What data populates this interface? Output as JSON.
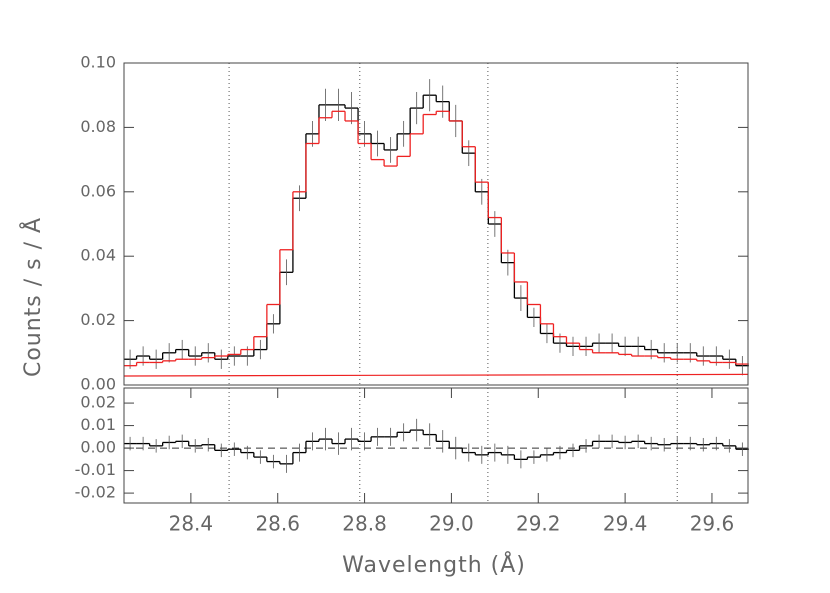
{
  "chart_data": [
    {
      "type": "step",
      "ylabel": "Counts / s / Å",
      "xlim": [
        28.246,
        29.683
      ],
      "ylim": [
        0,
        0.1
      ],
      "yticks": [
        {
          "value": 0,
          "label": "0.00"
        },
        {
          "value": 0.02,
          "label": "0.02"
        },
        {
          "value": 0.04,
          "label": "0.04"
        },
        {
          "value": 0.06,
          "label": "0.06"
        },
        {
          "value": 0.08,
          "label": "0.08"
        },
        {
          "value": 0.1,
          "label": "0.10"
        }
      ],
      "vlines": [
        28.488,
        28.789,
        29.084,
        29.52
      ],
      "series": [
        {
          "color": "#000000",
          "style": "step",
          "x": [
            28.26,
            28.29,
            28.32,
            28.35,
            28.38,
            28.41,
            28.44,
            28.47,
            28.5,
            28.53,
            28.56,
            28.59,
            28.62,
            28.65,
            28.68,
            28.71,
            28.74,
            28.77,
            28.8,
            28.83,
            28.86,
            28.89,
            28.92,
            28.95,
            28.98,
            29.01,
            29.04,
            29.07,
            29.1,
            29.13,
            29.16,
            29.19,
            29.22,
            29.25,
            29.28,
            29.31,
            29.34,
            29.37,
            29.4,
            29.43,
            29.46,
            29.49,
            29.52,
            29.55,
            29.58,
            29.61,
            29.64,
            29.67
          ],
          "values": [
            0.008,
            0.009,
            0.008,
            0.01,
            0.011,
            0.009,
            0.01,
            0.008,
            0.009,
            0.009,
            0.011,
            0.019,
            0.035,
            0.058,
            0.078,
            0.087,
            0.087,
            0.086,
            0.078,
            0.075,
            0.073,
            0.078,
            0.086,
            0.09,
            0.088,
            0.082,
            0.072,
            0.06,
            0.05,
            0.038,
            0.027,
            0.021,
            0.016,
            0.013,
            0.012,
            0.012,
            0.013,
            0.013,
            0.012,
            0.012,
            0.011,
            0.01,
            0.01,
            0.01,
            0.009,
            0.009,
            0.008,
            0.006
          ],
          "errors": [
            0.003,
            0.003,
            0.003,
            0.003,
            0.003,
            0.003,
            0.003,
            0.003,
            0.003,
            0.003,
            0.003,
            0.003,
            0.004,
            0.004,
            0.004,
            0.005,
            0.005,
            0.005,
            0.004,
            0.004,
            0.004,
            0.004,
            0.005,
            0.005,
            0.005,
            0.005,
            0.004,
            0.004,
            0.004,
            0.004,
            0.004,
            0.003,
            0.003,
            0.003,
            0.003,
            0.003,
            0.003,
            0.003,
            0.003,
            0.003,
            0.003,
            0.003,
            0.003,
            0.003,
            0.003,
            0.003,
            0.003,
            0.003
          ]
        },
        {
          "color": "#ee2222",
          "style": "step",
          "x": [
            28.26,
            28.29,
            28.32,
            28.35,
            28.38,
            28.41,
            28.44,
            28.47,
            28.5,
            28.53,
            28.56,
            28.59,
            28.62,
            28.65,
            28.68,
            28.71,
            28.74,
            28.77,
            28.8,
            28.83,
            28.86,
            28.89,
            28.92,
            28.95,
            28.98,
            29.01,
            29.04,
            29.07,
            29.1,
            29.13,
            29.16,
            29.19,
            29.22,
            29.25,
            29.28,
            29.31,
            29.34,
            29.37,
            29.4,
            29.43,
            29.46,
            29.49,
            29.52,
            29.55,
            29.58,
            29.61,
            29.64,
            29.67
          ],
          "values": [
            0.006,
            0.007,
            0.007,
            0.0075,
            0.008,
            0.008,
            0.0085,
            0.009,
            0.0095,
            0.011,
            0.015,
            0.025,
            0.042,
            0.06,
            0.075,
            0.083,
            0.085,
            0.082,
            0.075,
            0.07,
            0.068,
            0.071,
            0.078,
            0.084,
            0.085,
            0.082,
            0.074,
            0.063,
            0.052,
            0.041,
            0.032,
            0.025,
            0.019,
            0.015,
            0.013,
            0.011,
            0.01,
            0.01,
            0.0095,
            0.009,
            0.009,
            0.0085,
            0.008,
            0.008,
            0.0075,
            0.007,
            0.007,
            0.0065
          ]
        },
        {
          "color": "#ee2222",
          "style": "line",
          "x": [
            28.246,
            29.683
          ],
          "values": [
            0.0028,
            0.0033
          ]
        }
      ]
    },
    {
      "type": "step",
      "xlabel": "Wavelength (Å)",
      "xlim": [
        28.246,
        29.683
      ],
      "ylim": [
        -0.0244,
        0.0267
      ],
      "xticks": [
        28.4,
        28.6,
        28.8,
        {
          "value": 29,
          "label": "29.0"
        },
        29.2,
        29.4,
        29.6
      ],
      "yticks": [
        {
          "value": -0.02,
          "label": "-0.02"
        },
        {
          "value": -0.01,
          "label": "-0.01"
        },
        {
          "value": 0,
          "label": "0.00"
        },
        {
          "value": 0.01,
          "label": "0.01"
        },
        {
          "value": 0.02,
          "label": "0.02"
        }
      ],
      "zero_line": 0,
      "vlines": [
        28.488,
        28.789,
        29.084,
        29.52
      ],
      "series": [
        {
          "color": "#000000",
          "style": "step",
          "x": [
            28.26,
            28.29,
            28.32,
            28.35,
            28.38,
            28.41,
            28.44,
            28.47,
            28.5,
            28.53,
            28.56,
            28.59,
            28.62,
            28.65,
            28.68,
            28.71,
            28.74,
            28.77,
            28.8,
            28.83,
            28.86,
            28.89,
            28.92,
            28.95,
            28.98,
            29.01,
            29.04,
            29.07,
            29.1,
            29.13,
            29.16,
            29.19,
            29.22,
            29.25,
            29.28,
            29.31,
            29.34,
            29.37,
            29.4,
            29.43,
            29.46,
            29.49,
            29.52,
            29.55,
            29.58,
            29.61,
            29.64,
            29.67
          ],
          "values": [
            0.002,
            0.002,
            0.001,
            0.0025,
            0.003,
            0.001,
            0.0015,
            -0.001,
            -0.0005,
            -0.002,
            -0.004,
            -0.006,
            -0.007,
            -0.002,
            0.003,
            0.004,
            0.002,
            0.004,
            0.003,
            0.005,
            0.005,
            0.007,
            0.008,
            0.006,
            0.003,
            0,
            -0.002,
            -0.003,
            -0.002,
            -0.003,
            -0.005,
            -0.004,
            -0.003,
            -0.002,
            -0.001,
            0.001,
            0.003,
            0.003,
            0.0025,
            0.003,
            0.002,
            0.0015,
            0.002,
            0.002,
            0.0015,
            0.002,
            0.001,
            -0.0005
          ],
          "errors": [
            0.003,
            0.003,
            0.003,
            0.003,
            0.003,
            0.003,
            0.003,
            0.003,
            0.003,
            0.003,
            0.003,
            0.003,
            0.004,
            0.004,
            0.004,
            0.005,
            0.005,
            0.005,
            0.004,
            0.004,
            0.004,
            0.004,
            0.005,
            0.005,
            0.005,
            0.005,
            0.004,
            0.004,
            0.004,
            0.004,
            0.004,
            0.003,
            0.003,
            0.003,
            0.003,
            0.003,
            0.003,
            0.003,
            0.003,
            0.003,
            0.003,
            0.003,
            0.003,
            0.003,
            0.003,
            0.003,
            0.003,
            0.003
          ]
        }
      ]
    }
  ]
}
